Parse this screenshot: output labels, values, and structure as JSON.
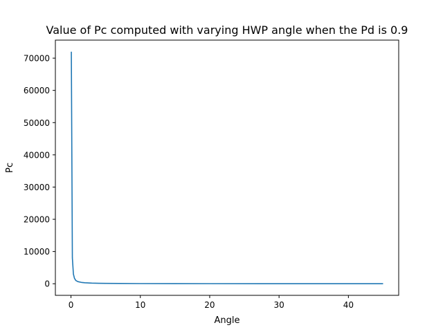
{
  "chart_data": {
    "type": "line",
    "title": "Value of Pc computed with varying HWP angle when the Pd is 0.9",
    "xlabel": "Angle",
    "ylabel": "Pc",
    "xlim": [
      -2.25,
      47.25
    ],
    "ylim": [
      -3600,
      75600
    ],
    "xticks": [
      0,
      10,
      20,
      30,
      40
    ],
    "xtick_labels": [
      "0",
      "10",
      "20",
      "30",
      "40"
    ],
    "yticks": [
      0,
      10000,
      20000,
      30000,
      40000,
      50000,
      60000,
      70000
    ],
    "ytick_labels": [
      "0",
      "10000",
      "20000",
      "30000",
      "40000",
      "50000",
      "60000",
      "70000"
    ],
    "grid": false,
    "legend": "none",
    "series": [
      {
        "color": "#1f77b4",
        "x": [
          0.05,
          0.2,
          0.35,
          0.5,
          0.7,
          1.0,
          1.5,
          2,
          3,
          4,
          5,
          7,
          10,
          15,
          20,
          30,
          40,
          45
        ],
        "y": [
          72000,
          8000,
          3000,
          1700,
          1000,
          650,
          420,
          300,
          200,
          150,
          120,
          80,
          50,
          30,
          20,
          10,
          5,
          3
        ]
      }
    ]
  }
}
